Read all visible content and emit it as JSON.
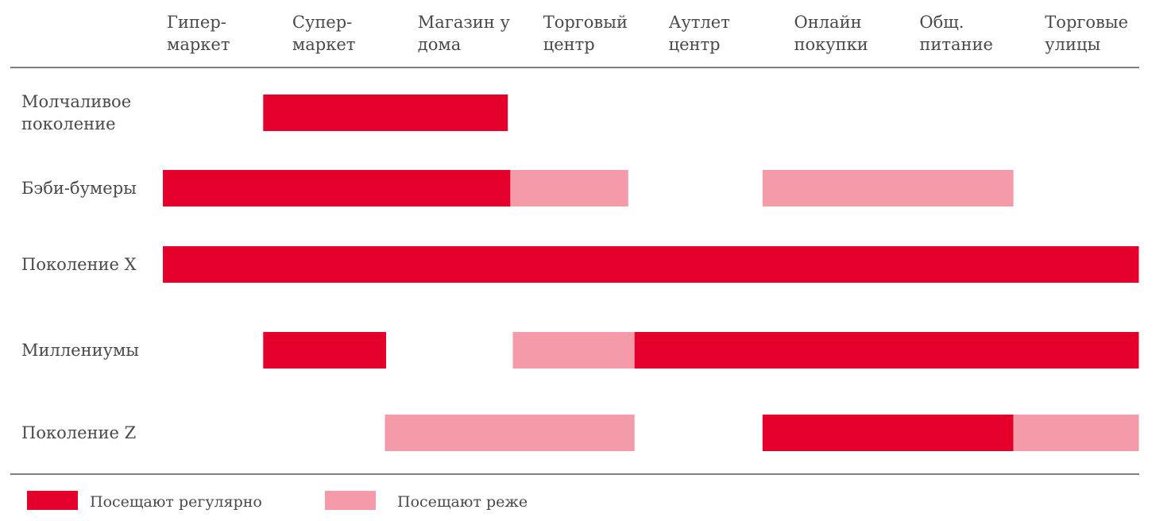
{
  "chart_data": {
    "type": "timeline-bar",
    "columns": [
      [
        "Гипер-",
        "маркет"
      ],
      [
        "Супер-",
        "маркет"
      ],
      [
        "Магазин у",
        "дома"
      ],
      [
        "Торговый",
        "центр"
      ],
      [
        "Аутлет",
        "центр"
      ],
      [
        "Онлайн",
        "покупки"
      ],
      [
        "Общ.",
        "питание"
      ],
      [
        "Торговые",
        "улицы"
      ]
    ],
    "rows": [
      {
        "label": [
          "Молчаливое",
          "поколение"
        ],
        "segments": [
          {
            "from": 0.8,
            "to": 2.75,
            "level": "regular"
          }
        ]
      },
      {
        "label": [
          "Бэби-бумеры"
        ],
        "segments": [
          {
            "from": 0.0,
            "to": 2.77,
            "level": "regular"
          },
          {
            "from": 2.77,
            "to": 3.71,
            "level": "rare"
          },
          {
            "from": 4.78,
            "to": 6.78,
            "level": "rare"
          }
        ]
      },
      {
        "label": [
          "Поколение X"
        ],
        "segments": [
          {
            "from": 0.0,
            "to": 7.78,
            "level": "regular"
          }
        ]
      },
      {
        "label": [
          "Миллениумы"
        ],
        "segments": [
          {
            "from": 0.8,
            "to": 1.78,
            "level": "regular"
          },
          {
            "from": 2.79,
            "to": 3.76,
            "level": "rare"
          },
          {
            "from": 3.76,
            "to": 7.78,
            "level": "regular"
          }
        ]
      },
      {
        "label": [
          "Поколение Z"
        ],
        "segments": [
          {
            "from": 1.77,
            "to": 3.76,
            "level": "rare"
          },
          {
            "from": 4.78,
            "to": 6.78,
            "level": "regular"
          },
          {
            "from": 6.78,
            "to": 7.78,
            "level": "rare"
          }
        ]
      }
    ],
    "legend": [
      {
        "level": "regular",
        "label": "Посещают регулярно"
      },
      {
        "level": "rare",
        "label": "Посещают реже"
      }
    ],
    "colors": {
      "regular": "#e4002b",
      "rare": "#f49aa8"
    }
  }
}
